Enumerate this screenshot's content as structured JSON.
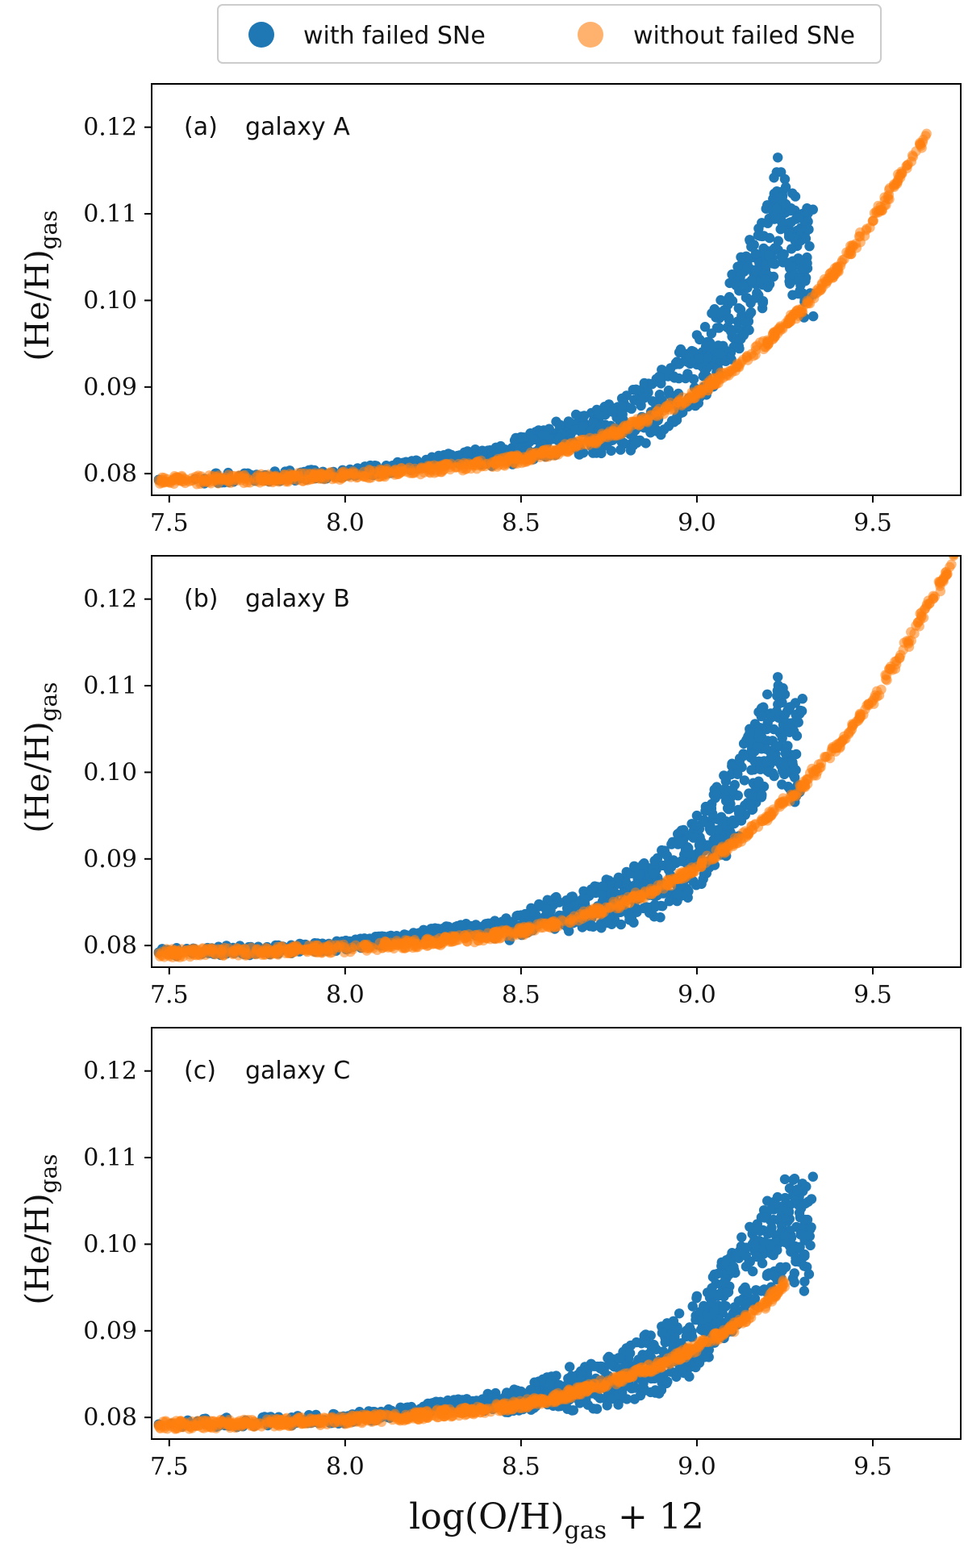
{
  "legend": {
    "placement": "top-center",
    "entries": [
      {
        "label": "with failed SNe",
        "color": "#1f77b4"
      },
      {
        "label": "without failed SNe",
        "color": "#ff7f0e"
      }
    ]
  },
  "xlabel": {
    "main": "log(O/H)",
    "sub": "gas",
    "tail": " + 12"
  },
  "ylabel": {
    "main": "(He/H)",
    "sub": "gas"
  },
  "chart_data": [
    {
      "type": "scatter",
      "panel_label": "(a)",
      "title": "galaxy A",
      "xlim": [
        7.45,
        9.75
      ],
      "ylim": [
        0.0775,
        0.125
      ],
      "xticks": [
        7.5,
        8.0,
        8.5,
        9.0,
        9.5
      ],
      "xtick_labels": [
        "7.5",
        "8.0",
        "8.5",
        "9.0",
        "9.5"
      ],
      "yticks": [
        0.08,
        0.09,
        0.1,
        0.11,
        0.12
      ],
      "ytick_labels": [
        "0.08",
        "0.09",
        "0.10",
        "0.11",
        "0.12"
      ],
      "series": [
        {
          "name": "with failed SNe",
          "x": [
            7.47,
            7.6,
            7.8,
            8.0,
            8.1,
            8.2,
            8.3,
            8.4,
            8.5,
            8.55,
            8.6,
            8.7,
            8.75,
            8.8,
            8.85,
            8.9,
            8.95,
            9.0,
            9.05,
            9.1,
            9.15,
            9.2,
            9.23,
            9.25,
            9.28,
            9.3,
            9.33
          ],
          "y": [
            0.0793,
            0.0794,
            0.0797,
            0.08,
            0.0805,
            0.081,
            0.0818,
            0.0825,
            0.084,
            0.085,
            0.086,
            0.087,
            0.088,
            0.089,
            0.09,
            0.092,
            0.094,
            0.096,
            0.099,
            0.103,
            0.107,
            0.111,
            0.1165,
            0.114,
            0.112,
            0.11,
            0.1105
          ]
        },
        {
          "name": "without failed SNe",
          "x": [
            7.47,
            7.6,
            7.8,
            8.0,
            8.2,
            8.4,
            8.5,
            8.6,
            8.7,
            8.8,
            8.9,
            9.0,
            9.1,
            9.2,
            9.3,
            9.4,
            9.5,
            9.6,
            9.65
          ],
          "y": [
            0.0792,
            0.0793,
            0.0795,
            0.0798,
            0.0803,
            0.0811,
            0.0817,
            0.0826,
            0.0838,
            0.0853,
            0.0871,
            0.0893,
            0.092,
            0.0952,
            0.0991,
            0.1037,
            0.1092,
            0.1157,
            0.119
          ]
        }
      ]
    },
    {
      "type": "scatter",
      "panel_label": "(b)",
      "title": "galaxy B",
      "xlim": [
        7.45,
        9.75
      ],
      "ylim": [
        0.0775,
        0.125
      ],
      "xticks": [
        7.5,
        8.0,
        8.5,
        9.0,
        9.5
      ],
      "xtick_labels": [
        "7.5",
        "8.0",
        "8.5",
        "9.0",
        "9.5"
      ],
      "yticks": [
        0.08,
        0.09,
        0.1,
        0.11,
        0.12
      ],
      "ytick_labels": [
        "0.08",
        "0.09",
        "0.10",
        "0.11",
        "0.12"
      ],
      "series": [
        {
          "name": "with failed SNe",
          "x": [
            7.47,
            7.6,
            7.8,
            8.0,
            8.1,
            8.2,
            8.3,
            8.4,
            8.5,
            8.55,
            8.6,
            8.7,
            8.75,
            8.8,
            8.85,
            8.9,
            8.95,
            9.0,
            9.05,
            9.1,
            9.15,
            9.2,
            9.23,
            9.25,
            9.28,
            9.3
          ],
          "y": [
            0.0792,
            0.0793,
            0.0796,
            0.08,
            0.0805,
            0.081,
            0.0818,
            0.0825,
            0.0835,
            0.0845,
            0.0855,
            0.0865,
            0.0875,
            0.0885,
            0.0895,
            0.091,
            0.093,
            0.095,
            0.098,
            0.101,
            0.105,
            0.109,
            0.111,
            0.109,
            0.108,
            0.1085
          ]
        },
        {
          "name": "without failed SNe",
          "x": [
            7.47,
            7.6,
            7.8,
            8.0,
            8.2,
            8.4,
            8.5,
            8.6,
            8.7,
            8.8,
            8.9,
            9.0,
            9.1,
            9.2,
            9.3,
            9.4,
            9.5,
            9.6,
            9.7,
            9.73
          ],
          "y": [
            0.0791,
            0.0792,
            0.0794,
            0.0797,
            0.0802,
            0.081,
            0.0816,
            0.0825,
            0.0837,
            0.0851,
            0.0869,
            0.0891,
            0.0917,
            0.0948,
            0.0985,
            0.103,
            0.1083,
            0.115,
            0.1222,
            0.125
          ]
        }
      ]
    },
    {
      "type": "scatter",
      "panel_label": "(c)",
      "title": "galaxy C",
      "xlim": [
        7.45,
        9.75
      ],
      "ylim": [
        0.0775,
        0.125
      ],
      "xticks": [
        7.5,
        8.0,
        8.5,
        9.0,
        9.5
      ],
      "xtick_labels": [
        "7.5",
        "8.0",
        "8.5",
        "9.0",
        "9.5"
      ],
      "yticks": [
        0.08,
        0.09,
        0.1,
        0.11,
        0.12
      ],
      "ytick_labels": [
        "0.08",
        "0.09",
        "0.10",
        "0.11",
        "0.12"
      ],
      "series": [
        {
          "name": "with failed SNe",
          "x": [
            7.47,
            7.6,
            7.8,
            8.0,
            8.1,
            8.2,
            8.3,
            8.4,
            8.5,
            8.55,
            8.6,
            8.7,
            8.75,
            8.8,
            8.85,
            8.9,
            8.95,
            9.0,
            9.05,
            9.1,
            9.15,
            9.2,
            9.25,
            9.3,
            9.33
          ],
          "y": [
            0.0792,
            0.0793,
            0.0795,
            0.0799,
            0.0803,
            0.0808,
            0.0815,
            0.0822,
            0.083,
            0.084,
            0.0848,
            0.086,
            0.087,
            0.088,
            0.089,
            0.0905,
            0.092,
            0.094,
            0.0965,
            0.099,
            0.102,
            0.105,
            0.1075,
            0.107,
            0.1078
          ]
        },
        {
          "name": "without failed SNe",
          "x": [
            7.47,
            7.6,
            7.8,
            8.0,
            8.2,
            8.4,
            8.5,
            8.6,
            8.7,
            8.8,
            8.9,
            9.0,
            9.1,
            9.2,
            9.25
          ],
          "y": [
            0.0791,
            0.0792,
            0.0794,
            0.0797,
            0.0802,
            0.0809,
            0.0815,
            0.0823,
            0.0834,
            0.0847,
            0.0862,
            0.0881,
            0.0903,
            0.0933,
            0.0955
          ]
        }
      ]
    }
  ]
}
